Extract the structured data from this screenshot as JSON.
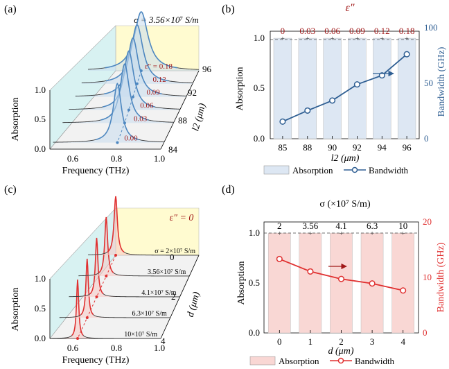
{
  "colors": {
    "blue": "#4d87c0",
    "blue_dark": "#2f5f93",
    "red": "#e03030",
    "dark_red": "#a01818",
    "bar_blue": "#dde7f3",
    "bar_red": "#f9d7d4",
    "yellow": "#fffbd0",
    "cyan": "#d8f2f2"
  },
  "chart_data": [
    {
      "type": "waterfall-3d",
      "panel": "(a)",
      "title": "σ = 3.56×10⁷ S/m",
      "xlabel": "Frequency (THz)",
      "xticks": [
        "0.6",
        "0.8",
        "1.0"
      ],
      "xlim": [
        0.5,
        1.0
      ],
      "ylabel": "Absorption",
      "yticks": [
        "0.0",
        "0.5",
        "1.0"
      ],
      "ylim": [
        0,
        1
      ],
      "zlabel": "l2 (μm)",
      "zticks": [
        "84",
        "88",
        "92",
        "96"
      ],
      "zlim": [
        84,
        96
      ],
      "series": [
        {
          "name": "0.00",
          "l2": 85,
          "f0": 0.79,
          "width": 0.045,
          "peak": 1.0
        },
        {
          "name": "0.03",
          "l2": 88,
          "f0": 0.78,
          "width": 0.05,
          "peak": 1.0
        },
        {
          "name": "0.06",
          "l2": 90,
          "f0": 0.77,
          "width": 0.055,
          "peak": 1.0
        },
        {
          "name": "0.09",
          "l2": 92,
          "f0": 0.76,
          "width": 0.06,
          "peak": 1.0
        },
        {
          "name": "0.12",
          "l2": 94,
          "f0": 0.75,
          "width": 0.065,
          "peak": 1.0
        },
        {
          "name": "0.18",
          "l2": 96,
          "f0": 0.74,
          "width": 0.075,
          "peak": 1.0
        }
      ],
      "legend_prefix": "ε″ = "
    },
    {
      "type": "bar+line",
      "panel": "(b)",
      "xlabel": "l2 (μm)",
      "categories": [
        "85",
        "88",
        "90",
        "92",
        "94",
        "96"
      ],
      "top_label": "ε″",
      "top_ticks": [
        "0",
        "0.03",
        "0.06",
        "0.09",
        "0.12",
        "0.18"
      ],
      "ylabel": "Absorption",
      "ylim": [
        0,
        1
      ],
      "yticks": [
        "0.0",
        "0.5",
        "1.0"
      ],
      "y2label": "Bandwidth (GHz)",
      "y2lim": [
        0,
        100
      ],
      "y2ticks": [
        "0",
        "50",
        "100"
      ],
      "series": [
        {
          "name": "Absorption",
          "type": "bar",
          "values": [
            0.999,
            0.999,
            0.999,
            0.999,
            0.999,
            0.999
          ]
        },
        {
          "name": "Bandwidth",
          "type": "line",
          "axis": "y2",
          "values": [
            17,
            28,
            38,
            54,
            63,
            84
          ]
        }
      ]
    },
    {
      "type": "waterfall-3d",
      "panel": "(c)",
      "title": "ε″ = 0",
      "xlabel": "Frequency (THz)",
      "xticks": [
        "0.6",
        "0.8",
        "1.0"
      ],
      "xlim": [
        0.5,
        1.0
      ],
      "ylabel": "Absorption",
      "yticks": [
        "0.0",
        "0.5",
        "1.0"
      ],
      "ylim": [
        0,
        1
      ],
      "zlabel": "d (μm)",
      "zticks": [
        "0",
        "2",
        "4"
      ],
      "zlim": [
        0,
        4
      ],
      "series": [
        {
          "name": "10×10⁷ S/m",
          "d": 4,
          "f0": 0.625,
          "width": 0.012,
          "peak": 1.0
        },
        {
          "name": "6.3×10⁷ S/m",
          "d": 3,
          "f0": 0.625,
          "width": 0.013,
          "peak": 1.0
        },
        {
          "name": "4.1×10⁷ S/m",
          "d": 2,
          "f0": 0.625,
          "width": 0.014,
          "peak": 1.0
        },
        {
          "name": "3.56×10⁷ S/m",
          "d": 1,
          "f0": 0.625,
          "width": 0.016,
          "peak": 1.0
        },
        {
          "name": "σ = 2×10⁷ S/m",
          "d": 0,
          "f0": 0.625,
          "width": 0.018,
          "peak": 1.0
        }
      ]
    },
    {
      "type": "bar+line",
      "panel": "(d)",
      "xlabel": "d (μm)",
      "categories": [
        "0",
        "1",
        "2",
        "3",
        "4"
      ],
      "top_label": "σ (×10⁷ S/m)",
      "top_ticks": [
        "2",
        "3.56",
        "4.1",
        "6.3",
        "10"
      ],
      "ylabel": "Absorption",
      "ylim": [
        0,
        1
      ],
      "yticks": [
        "0.0",
        "0.5",
        "1.0"
      ],
      "y2label": "Bandwidth (GHz)",
      "y2lim": [
        0,
        20
      ],
      "y2ticks": [
        "0",
        "10",
        "20"
      ],
      "series": [
        {
          "name": "Absorption",
          "type": "bar",
          "values": [
            0.999,
            0.999,
            0.999,
            0.999,
            0.999
          ]
        },
        {
          "name": "Bandwidth",
          "type": "line",
          "axis": "y2",
          "values": [
            14.8,
            12.3,
            10.8,
            9.9,
            8.5
          ]
        }
      ]
    }
  ]
}
